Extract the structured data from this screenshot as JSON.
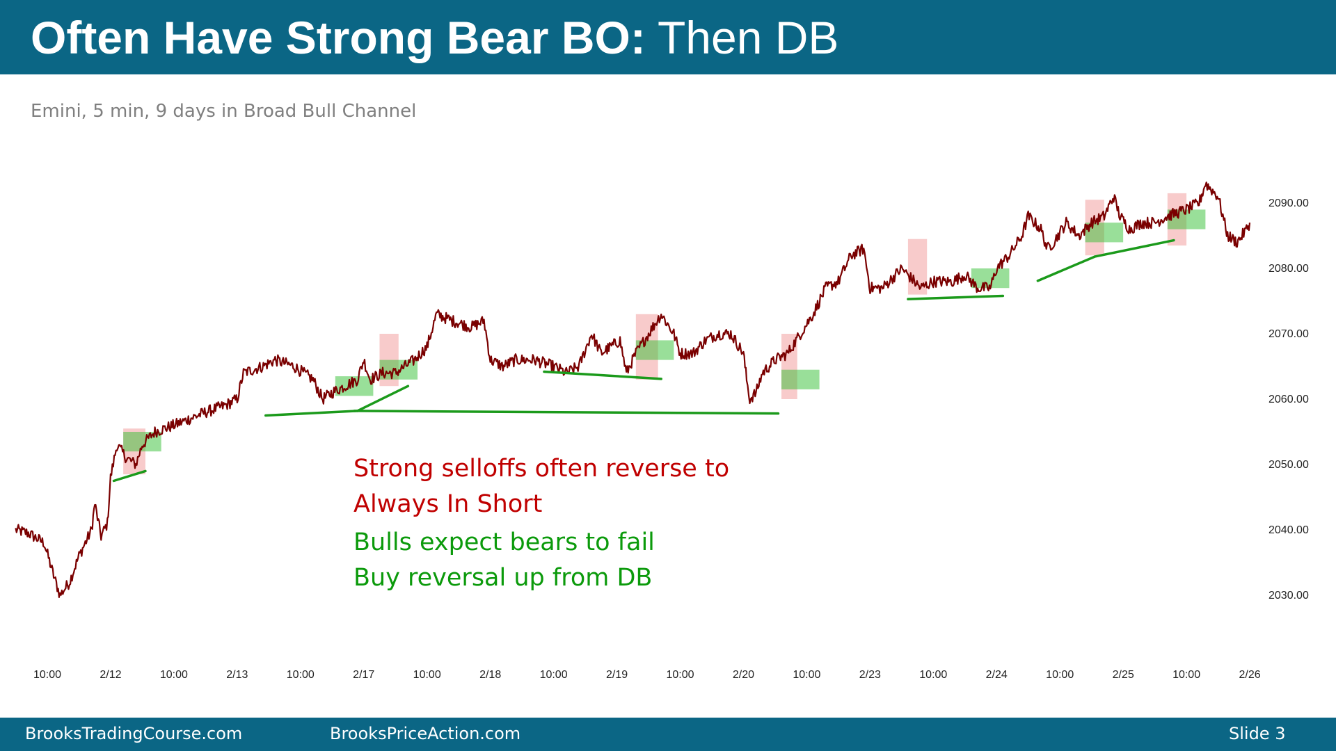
{
  "slide": {
    "title_bold": "Often Have Strong Bear BO:",
    "title_normal": " Then DB",
    "subtitle": "Emini, 5 min, 9 days in Broad Bull Channel"
  },
  "annotations": {
    "red_line1": "Strong selloffs often reverse to",
    "red_line2": "Always In Short",
    "green_line1": "Bulls expect bears to fail",
    "green_line2": "Buy reversal up from DB"
  },
  "footer": {
    "left": "BrooksTradingCourse.com",
    "center": "BrooksPriceAction.com",
    "right": "Slide  3"
  },
  "colors": {
    "header_bg": "#0b6685",
    "price_line": "#7a0000",
    "trendline": "#1b9a1b",
    "bear_box": "#f2a0a0",
    "bull_box": "#33c033",
    "red_text": "#c00000",
    "green_text": "#0b9a0b"
  },
  "chart_data": {
    "type": "line",
    "series_name": "Emini 5 min",
    "x_tick_labels": [
      "10:00",
      "2/12",
      "10:00",
      "2/13",
      "10:00",
      "2/17",
      "10:00",
      "2/18",
      "10:00",
      "2/19",
      "10:00",
      "2/20",
      "10:00",
      "2/23",
      "10:00",
      "2/24",
      "10:00",
      "2/25",
      "10:00",
      "2/26"
    ],
    "y_ticks": [
      2030,
      2040,
      2050,
      2060,
      2070,
      2080,
      2090
    ],
    "y_tick_labels": [
      "2030.00",
      "2040.00",
      "2050.00",
      "2060.00",
      "2070.00",
      "2080.00",
      "2090.00"
    ],
    "ylim": [
      2023,
      2097
    ],
    "xlim": [
      0,
      19
    ],
    "y_axis_position": "right",
    "grid": false,
    "price_path": [
      [
        -0.5,
        2040
      ],
      [
        -0.3,
        2039.5
      ],
      [
        -0.05,
        2038
      ],
      [
        0.1,
        2033
      ],
      [
        0.2,
        2030
      ],
      [
        0.35,
        2032
      ],
      [
        0.5,
        2036
      ],
      [
        0.7,
        2040
      ],
      [
        0.75,
        2044
      ],
      [
        0.85,
        2039
      ],
      [
        0.95,
        2041
      ],
      [
        1.0,
        2048
      ],
      [
        1.1,
        2053
      ],
      [
        1.25,
        2051
      ],
      [
        1.4,
        2050
      ],
      [
        1.5,
        2053
      ],
      [
        1.7,
        2055
      ],
      [
        2.0,
        2056
      ],
      [
        2.5,
        2058
      ],
      [
        2.8,
        2059
      ],
      [
        3.0,
        2060
      ],
      [
        3.1,
        2064
      ],
      [
        3.4,
        2065
      ],
      [
        3.6,
        2066
      ],
      [
        3.9,
        2065
      ],
      [
        4.2,
        2063
      ],
      [
        4.35,
        2060
      ],
      [
        4.5,
        2061
      ],
      [
        4.7,
        2062
      ],
      [
        4.9,
        2063
      ],
      [
        5.0,
        2066
      ],
      [
        5.1,
        2063
      ],
      [
        5.3,
        2064
      ],
      [
        5.5,
        2064
      ],
      [
        5.8,
        2066
      ],
      [
        6.0,
        2068
      ],
      [
        6.15,
        2073
      ],
      [
        6.4,
        2072
      ],
      [
        6.7,
        2071
      ],
      [
        6.9,
        2072
      ],
      [
        7.0,
        2066
      ],
      [
        7.2,
        2065
      ],
      [
        7.4,
        2066
      ],
      [
        7.7,
        2066
      ],
      [
        8.0,
        2065
      ],
      [
        8.2,
        2064
      ],
      [
        8.4,
        2065
      ],
      [
        8.6,
        2070
      ],
      [
        8.75,
        2067
      ],
      [
        8.9,
        2068
      ],
      [
        9.05,
        2069
      ],
      [
        9.15,
        2064
      ],
      [
        9.3,
        2067
      ],
      [
        9.5,
        2070
      ],
      [
        9.7,
        2073
      ],
      [
        9.9,
        2070
      ],
      [
        10.0,
        2067
      ],
      [
        10.2,
        2067
      ],
      [
        10.4,
        2069
      ],
      [
        10.6,
        2070
      ],
      [
        10.8,
        2070
      ],
      [
        11.0,
        2067
      ],
      [
        11.05,
        2063
      ],
      [
        11.1,
        2060
      ],
      [
        11.2,
        2061
      ],
      [
        11.3,
        2064
      ],
      [
        11.5,
        2066
      ],
      [
        11.7,
        2067
      ],
      [
        11.9,
        2070
      ],
      [
        12.1,
        2073
      ],
      [
        12.3,
        2077
      ],
      [
        12.5,
        2078
      ],
      [
        12.7,
        2082
      ],
      [
        12.9,
        2083
      ],
      [
        13.0,
        2077
      ],
      [
        13.2,
        2077
      ],
      [
        13.5,
        2080
      ],
      [
        13.8,
        2077
      ],
      [
        14.0,
        2078
      ],
      [
        14.3,
        2078
      ],
      [
        14.5,
        2079
      ],
      [
        14.7,
        2077
      ],
      [
        14.9,
        2077
      ],
      [
        15.0,
        2080
      ],
      [
        15.2,
        2082
      ],
      [
        15.4,
        2085
      ],
      [
        15.5,
        2088
      ],
      [
        15.7,
        2086
      ],
      [
        15.8,
        2083
      ],
      [
        15.9,
        2084
      ],
      [
        16.1,
        2087
      ],
      [
        16.3,
        2085
      ],
      [
        16.5,
        2087
      ],
      [
        16.7,
        2088
      ],
      [
        16.85,
        2091
      ],
      [
        16.95,
        2088
      ],
      [
        17.1,
        2086
      ],
      [
        17.3,
        2087
      ],
      [
        17.5,
        2087
      ],
      [
        17.7,
        2088
      ],
      [
        18.0,
        2089
      ],
      [
        18.2,
        2090
      ],
      [
        18.3,
        2093
      ],
      [
        18.5,
        2091
      ],
      [
        18.65,
        2085
      ],
      [
        18.8,
        2084
      ],
      [
        18.95,
        2086
      ],
      [
        19.0,
        2087
      ]
    ],
    "bear_breakouts": [
      {
        "x0": 1.2,
        "x1": 1.55,
        "y0": 2048.5,
        "y1": 2055.5
      },
      {
        "x0": 5.25,
        "x1": 5.55,
        "y0": 2062,
        "y1": 2070
      },
      {
        "x0": 9.3,
        "x1": 9.65,
        "y0": 2063,
        "y1": 2073
      },
      {
        "x0": 11.6,
        "x1": 11.85,
        "y0": 2060,
        "y1": 2070
      },
      {
        "x0": 13.6,
        "x1": 13.9,
        "y0": 2076,
        "y1": 2084.5
      },
      {
        "x0": 16.4,
        "x1": 16.7,
        "y0": 2082,
        "y1": 2090.5
      },
      {
        "x0": 17.7,
        "x1": 18.0,
        "y0": 2083.5,
        "y1": 2091.5
      }
    ],
    "double_bottom_entries": [
      {
        "x0": 1.2,
        "x1": 1.8,
        "y0": 2052,
        "y1": 2055
      },
      {
        "x0": 4.55,
        "x1": 5.15,
        "y0": 2060.5,
        "y1": 2063.5
      },
      {
        "x0": 5.25,
        "x1": 5.85,
        "y0": 2063,
        "y1": 2066
      },
      {
        "x0": 9.3,
        "x1": 9.9,
        "y0": 2066,
        "y1": 2069
      },
      {
        "x0": 11.6,
        "x1": 12.2,
        "y0": 2061.5,
        "y1": 2064.5
      },
      {
        "x0": 14.6,
        "x1": 15.2,
        "y0": 2077,
        "y1": 2080
      },
      {
        "x0": 16.4,
        "x1": 17.0,
        "y0": 2084,
        "y1": 2087
      },
      {
        "x0": 17.7,
        "x1": 18.3,
        "y0": 2086,
        "y1": 2089
      }
    ],
    "support_lines": [
      {
        "x1": 1.05,
        "y1": 2047.5,
        "x2": 1.55,
        "y2": 2049
      },
      {
        "x1": 3.45,
        "y1": 2057.5,
        "x2": 4.9,
        "y2": 2058.2
      },
      {
        "x1": 4.85,
        "y1": 2058.2,
        "x2": 11.55,
        "y2": 2057.8
      },
      {
        "x1": 4.9,
        "y1": 2058.2,
        "x2": 5.7,
        "y2": 2062
      },
      {
        "x1": 7.85,
        "y1": 2064.2,
        "x2": 9.7,
        "y2": 2063.1
      },
      {
        "x1": 13.6,
        "y1": 2075.3,
        "x2": 15.1,
        "y2": 2075.8
      },
      {
        "x1": 15.65,
        "y1": 2078.1,
        "x2": 16.55,
        "y2": 2081.8
      },
      {
        "x1": 16.55,
        "y1": 2081.8,
        "x2": 17.8,
        "y2": 2084.3
      }
    ]
  }
}
